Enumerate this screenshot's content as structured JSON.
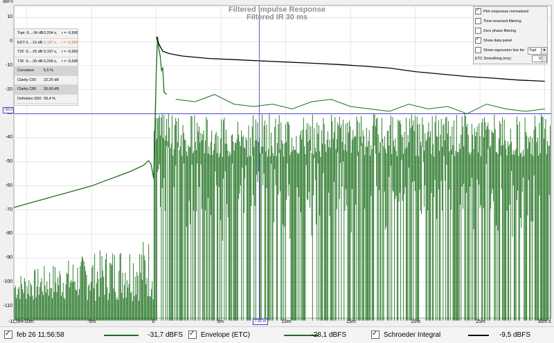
{
  "chart_data": {
    "type": "line",
    "title": "Filtered Impulse Response",
    "subtitle": "Filtered IR 30 ms",
    "ylabel": "dBFS",
    "xlabel": "",
    "xlim": [
      -0.011,
      0.0305
    ],
    "ylim": [
      -115,
      15
    ],
    "y_ticks": [
      "10",
      "0",
      "-10",
      "-20",
      "-30",
      "-40",
      "-50",
      "-60",
      "-70",
      "-80",
      "-90",
      "-100",
      "-110"
    ],
    "x_ticks": [
      {
        "label": "-11,0m",
        "v": -0.011
      },
      {
        "label": "-10m",
        "v": -0.01
      },
      {
        "label": "-5m",
        "v": -0.005
      },
      {
        "label": "0",
        "v": 0.0
      },
      {
        "label": "5m",
        "v": 0.005
      },
      {
        "label": "10m",
        "v": 0.01
      },
      {
        "label": "15m",
        "v": 0.015
      },
      {
        "label": "20m",
        "v": 0.02
      },
      {
        "label": "25m",
        "v": 0.025
      },
      {
        "label": "30m s",
        "v": 0.03
      }
    ],
    "grid": true,
    "series": [
      {
        "name": "Envelope (ETC)",
        "color": "#1a6e1a",
        "x": [
          -0.011,
          -0.01,
          -0.009,
          -0.008,
          -0.007,
          -0.006,
          -0.005,
          -0.004,
          -0.003,
          -0.002,
          -0.001,
          -0.0006,
          -0.0004,
          -0.0002,
          0.0,
          0.0001,
          0.0002,
          0.0003,
          0.0004,
          0.0005,
          0.0006,
          0.0008
        ],
        "y": [
          -69,
          -67.5,
          -66,
          -64.5,
          -63,
          -61.5,
          -60,
          -58,
          -56,
          -54,
          -51.5,
          -49.5,
          -51,
          -57,
          -12,
          2,
          -3,
          -6,
          -12,
          -11,
          -21,
          -22
        ],
        "peaks_x": [
          0.0015,
          0.003,
          0.0045,
          0.006,
          0.0075,
          0.009,
          0.0105,
          0.012,
          0.0135,
          0.015,
          0.0165,
          0.018,
          0.0195,
          0.021,
          0.0225,
          0.024,
          0.0255,
          0.027,
          0.0285,
          0.03
        ],
        "peaks_y": [
          -24,
          -25,
          -22,
          -26,
          -27,
          -26,
          -28,
          -25,
          -24,
          -27,
          -28,
          -29,
          -26,
          -28,
          -27,
          -30,
          -26,
          -28,
          -29,
          -28
        ]
      },
      {
        "name": "Schroeder Integral",
        "color": "#000000",
        "x": [
          0.0,
          0.0002,
          0.0005,
          0.001,
          0.002,
          0.004,
          0.006,
          0.008,
          0.01,
          0.012,
          0.014,
          0.016,
          0.018,
          0.02,
          0.022,
          0.024,
          0.026,
          0.028,
          0.03
        ],
        "y": [
          2,
          -1,
          -4,
          -5,
          -6,
          -7,
          -7.5,
          -8,
          -8.5,
          -9,
          -9.5,
          -10.2,
          -11,
          -12.5,
          -13.5,
          -14.5,
          -15.2,
          -16,
          -16.5
        ]
      }
    ],
    "noise_floor": {
      "pre_min": -116,
      "pre_max": -88,
      "post_min": -116,
      "post_max": -30
    }
  },
  "cursor": {
    "y_label": "-30,0",
    "x_label": "7,95 m",
    "x_value": 0.00795,
    "y_value": -30
  },
  "data_panel": {
    "rows": [
      {
        "label": "Topt -5...-34 dB",
        "value": "0,204 s,",
        "r": "r = -0,996",
        "shaded": false,
        "highlight": false
      },
      {
        "label": "EDT 0...-10 dB",
        "value": "0,187 s,",
        "r": "r = -0,895",
        "shaded": false,
        "highlight": true
      },
      {
        "label": "T20 -5...-25 dB",
        "value": "0,197 s,",
        "r": "r = -0,992",
        "shaded": false,
        "highlight": false
      },
      {
        "label": "T30 -5...-35 dB",
        "value": "0,209 s,",
        "r": "r = -0,996",
        "shaded": false,
        "highlight": false
      },
      {
        "label": "Curvature",
        "value": "6,5 %",
        "r": "",
        "shaded": true,
        "highlight": false
      },
      {
        "label": "Clarity C50",
        "value": "22,25 dB",
        "r": "",
        "shaded": false,
        "highlight": false
      },
      {
        "label": "Clarity C80",
        "value": "30,60 dB",
        "r": "",
        "shaded": true,
        "highlight": false
      },
      {
        "label": "Definition D50",
        "value": "99,4 %",
        "r": "",
        "shaded": false,
        "highlight": false
      }
    ]
  },
  "options": {
    "plot_normalised": {
      "label": "Plot responses normalised",
      "checked": true
    },
    "time_reversed": {
      "label": "Time-reversed filtering",
      "checked": false
    },
    "zero_phase": {
      "label": "Zero phase filtering",
      "checked": false
    },
    "show_panel": {
      "label": "Show data panel",
      "checked": true
    },
    "show_regression": {
      "label": "Show regression line for:",
      "checked": false
    },
    "regression_select": "Topt",
    "smoothing_label": "ETC Smoothing (ms):",
    "smoothing_value": "0"
  },
  "legend": {
    "item1": {
      "label": "feb 26 11:56:58",
      "value": "-31,7 dBFS",
      "color": "#1a6e1a"
    },
    "item2": {
      "label": "Envelope (ETC)",
      "value": "-28,1 dBFS",
      "color": "#1a6e1a"
    },
    "item3": {
      "label": "Schroeder Integral",
      "value": "-9,5 dBFS",
      "color": "#000000"
    }
  }
}
